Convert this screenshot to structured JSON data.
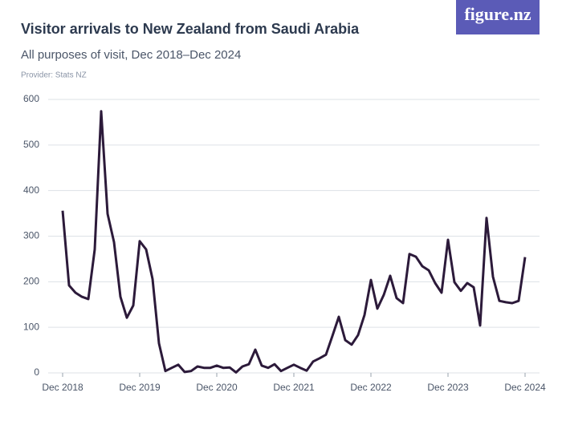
{
  "brand": "figure.nz",
  "chart_data": {
    "type": "line",
    "title": "Visitor arrivals to New Zealand from Saudi Arabia",
    "subtitle": "All purposes of visit, Dec 2018–Dec 2024",
    "source": "Provider: Stats NZ",
    "color": "#2c1a3a",
    "grid": true,
    "ylim": [
      0,
      600
    ],
    "yticks": [
      0,
      100,
      200,
      300,
      400,
      500,
      600
    ],
    "categories": [
      "Dec 2018",
      null,
      null,
      null,
      null,
      null,
      null,
      null,
      null,
      null,
      null,
      null,
      "Dec 2019",
      null,
      null,
      null,
      null,
      null,
      null,
      null,
      null,
      null,
      null,
      null,
      "Dec 2020",
      null,
      null,
      null,
      null,
      null,
      null,
      null,
      null,
      null,
      null,
      null,
      "Dec 2021",
      null,
      null,
      null,
      null,
      null,
      null,
      null,
      null,
      null,
      null,
      null,
      "Dec 2022",
      null,
      null,
      null,
      null,
      null,
      null,
      null,
      null,
      null,
      null,
      null,
      "Dec 2023",
      null,
      null,
      null,
      null,
      null,
      null,
      null,
      null,
      null,
      null,
      null,
      "Dec 2024"
    ],
    "values": [
      356,
      192,
      176,
      167,
      162,
      271,
      574,
      349,
      287,
      167,
      121,
      148,
      289,
      271,
      206,
      65,
      4,
      11,
      18,
      2,
      4,
      14,
      11,
      11,
      16,
      11,
      12,
      1,
      14,
      19,
      51,
      16,
      11,
      19,
      4,
      11,
      18,
      11,
      5,
      25,
      32,
      40,
      81,
      123,
      72,
      62,
      83,
      127,
      204,
      141,
      171,
      213,
      164,
      153,
      261,
      255,
      234,
      225,
      197,
      176,
      292,
      199,
      180,
      197,
      188,
      104,
      340,
      211,
      158,
      155,
      153,
      158,
      254
    ]
  }
}
